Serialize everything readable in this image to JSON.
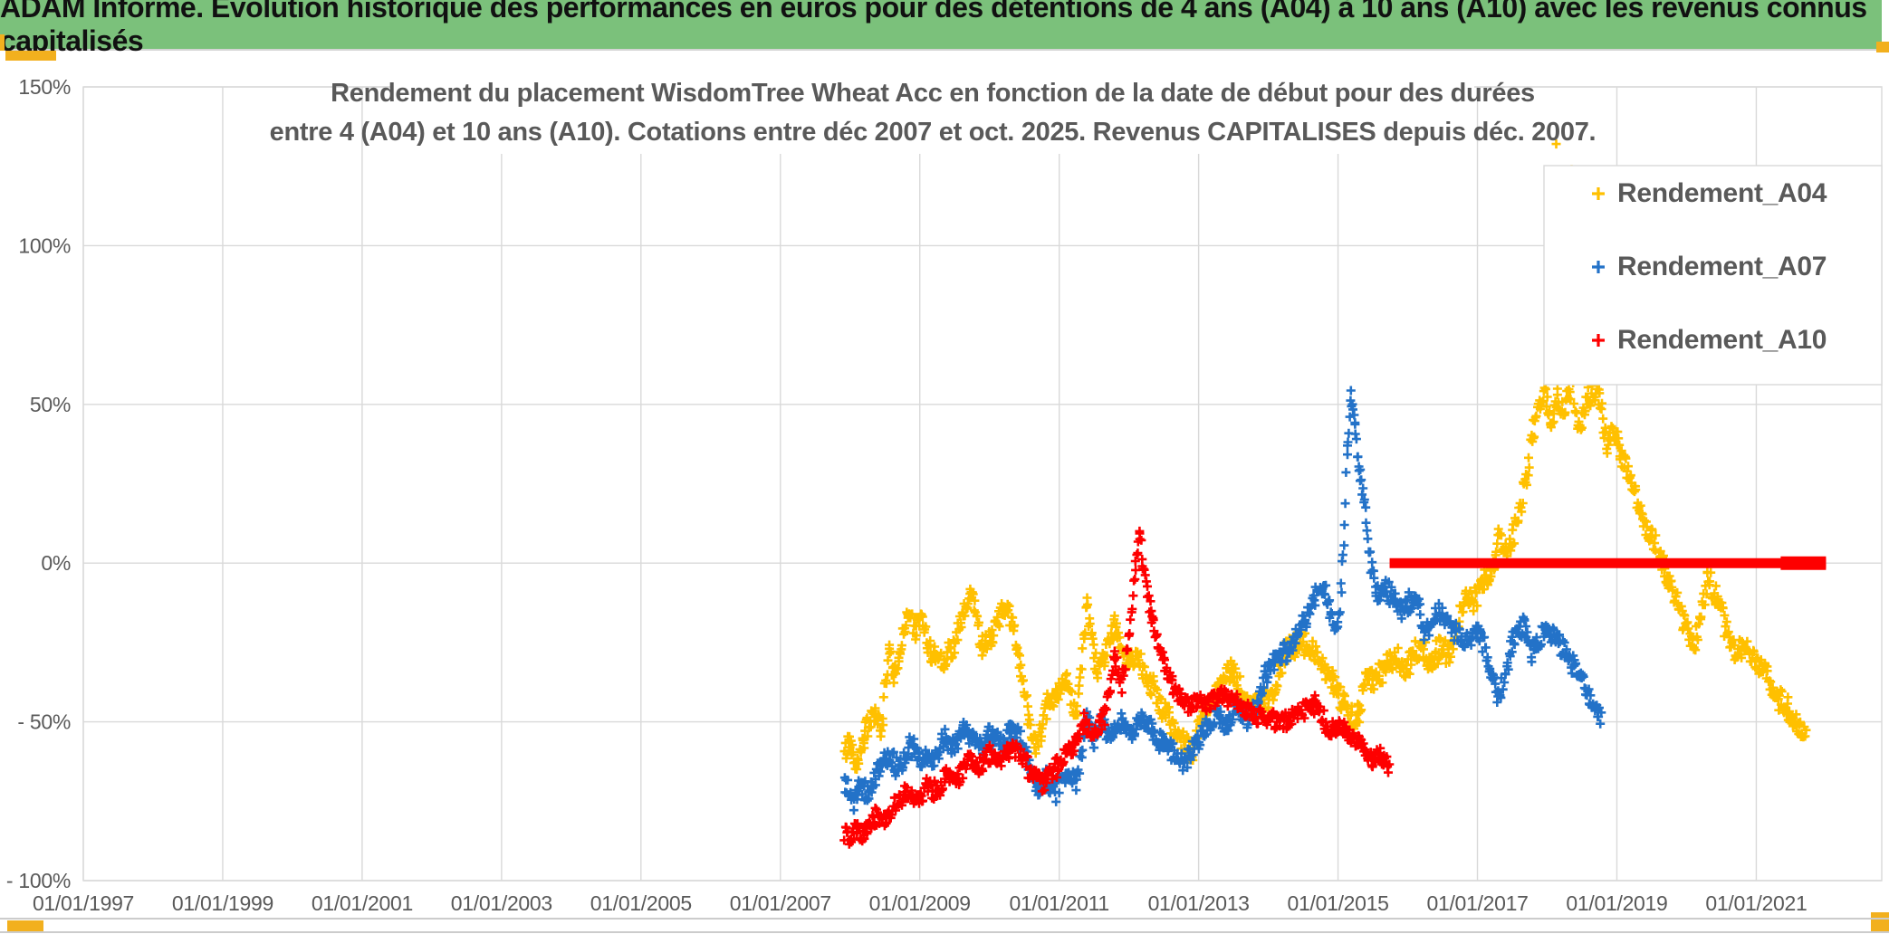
{
  "page": {
    "header": {
      "text": "ADAM Informe. Evolution historique des performances en euros pour des détentions de 4 ans (A04) à 10 ans (A10) avec les revenus connus capitalisés",
      "bg_color": "#7BC17B",
      "text_color": "#111111"
    },
    "accent_color": "#F2B01E",
    "rule_color": "#CCCCCC"
  },
  "chart_data": {
    "type": "scatter",
    "title_lines": [
      "Rendement du placement WisdomTree Wheat Acc en fonction de la date de début pour des durées",
      "entre 4 (A04) et 10 ans (A10). Cotations entre déc 2007 et oct. 2025. Revenus CAPITALISES depuis déc. 2007."
    ],
    "x_range": [
      1997,
      2022.8
    ],
    "y_range": [
      -100,
      150
    ],
    "grid": true,
    "marker": "plus",
    "point_step": 0.012,
    "style": {
      "grid_color": "#D9D9D9",
      "axis_text_color": "#595959",
      "title_color": "#595959"
    },
    "x_ticks": [
      {
        "label": "01/01/1997",
        "year": 1997
      },
      {
        "label": "01/01/1999",
        "year": 1999
      },
      {
        "label": "01/01/2001",
        "year": 2001
      },
      {
        "label": "01/01/2003",
        "year": 2003
      },
      {
        "label": "01/01/2005",
        "year": 2005
      },
      {
        "label": "01/01/2007",
        "year": 2007
      },
      {
        "label": "01/01/2009",
        "year": 2009
      },
      {
        "label": "01/01/2011",
        "year": 2011
      },
      {
        "label": "01/01/2013",
        "year": 2013
      },
      {
        "label": "01/01/2015",
        "year": 2015
      },
      {
        "label": "01/01/2017",
        "year": 2017
      },
      {
        "label": "01/01/2019",
        "year": 2019
      },
      {
        "label": "01/01/2021",
        "year": 2021
      }
    ],
    "y_ticks": [
      {
        "label": "150%",
        "value": 150
      },
      {
        "label": "100%",
        "value": 100
      },
      {
        "label": "50%",
        "value": 50
      },
      {
        "label": "0%",
        "value": 0
      },
      {
        "label": "- 50%",
        "value": -50
      },
      {
        "label": "- 100%",
        "value": -100
      }
    ],
    "legend": [
      {
        "label": "Rendement_A04",
        "color": "#FFC000"
      },
      {
        "label": "Rendement_A07",
        "color": "#2372C8"
      },
      {
        "label": "Rendement_A10",
        "color": "#FE0000"
      }
    ],
    "series": [
      {
        "name": "Rendement_A04",
        "color": "#FFC000",
        "spread": 4.2,
        "anchors": [
          [
            2007.92,
            -60
          ],
          [
            2008.0,
            -56
          ],
          [
            2008.08,
            -63
          ],
          [
            2008.2,
            -55
          ],
          [
            2008.36,
            -46
          ],
          [
            2008.45,
            -54
          ],
          [
            2008.56,
            -26
          ],
          [
            2008.62,
            -36
          ],
          [
            2008.72,
            -28
          ],
          [
            2008.83,
            -15
          ],
          [
            2008.95,
            -22
          ],
          [
            2009.0,
            -17
          ],
          [
            2009.15,
            -28
          ],
          [
            2009.35,
            -30
          ],
          [
            2009.5,
            -25
          ],
          [
            2009.62,
            -17
          ],
          [
            2009.74,
            -9
          ],
          [
            2009.9,
            -26
          ],
          [
            2010.05,
            -22
          ],
          [
            2010.2,
            -14
          ],
          [
            2010.35,
            -20
          ],
          [
            2010.45,
            -34
          ],
          [
            2010.55,
            -47
          ],
          [
            2010.65,
            -57
          ],
          [
            2010.75,
            -52
          ],
          [
            2010.85,
            -44
          ],
          [
            2010.95,
            -42
          ],
          [
            2011.1,
            -38
          ],
          [
            2011.25,
            -47
          ],
          [
            2011.4,
            -14
          ],
          [
            2011.5,
            -30
          ],
          [
            2011.55,
            -34
          ],
          [
            2011.65,
            -28
          ],
          [
            2011.8,
            -20
          ],
          [
            2011.95,
            -32
          ],
          [
            2012.1,
            -28
          ],
          [
            2012.25,
            -35
          ],
          [
            2012.4,
            -42
          ],
          [
            2012.6,
            -50
          ],
          [
            2012.75,
            -55
          ],
          [
            2012.9,
            -60
          ],
          [
            2013.05,
            -48
          ],
          [
            2013.2,
            -44
          ],
          [
            2013.47,
            -33
          ],
          [
            2013.7,
            -45
          ],
          [
            2014.0,
            -44
          ],
          [
            2014.3,
            -26
          ],
          [
            2014.55,
            -26
          ],
          [
            2014.7,
            -29
          ],
          [
            2014.93,
            -38
          ],
          [
            2015.2,
            -49
          ],
          [
            2015.3,
            -47
          ],
          [
            2015.4,
            -34
          ],
          [
            2015.5,
            -38
          ],
          [
            2015.7,
            -32
          ],
          [
            2015.84,
            -30
          ],
          [
            2015.97,
            -34
          ],
          [
            2016.1,
            -28
          ],
          [
            2016.24,
            -28
          ],
          [
            2016.33,
            -32
          ],
          [
            2016.46,
            -26
          ],
          [
            2016.6,
            -29
          ],
          [
            2016.73,
            -17
          ],
          [
            2016.82,
            -10
          ],
          [
            2016.95,
            -12
          ],
          [
            2017.08,
            -6
          ],
          [
            2017.2,
            -3
          ],
          [
            2017.3,
            8
          ],
          [
            2017.43,
            2
          ],
          [
            2017.55,
            12
          ],
          [
            2017.7,
            25
          ],
          [
            2017.8,
            42
          ],
          [
            2017.88,
            50
          ],
          [
            2017.95,
            55
          ],
          [
            2018.05,
            45
          ],
          [
            2018.15,
            52
          ],
          [
            2018.25,
            48
          ],
          [
            2018.35,
            57
          ],
          [
            2018.45,
            42
          ],
          [
            2018.55,
            50
          ],
          [
            2018.65,
            55
          ],
          [
            2018.75,
            52
          ],
          [
            2018.85,
            38
          ],
          [
            2018.95,
            42
          ],
          [
            2019.05,
            35
          ],
          [
            2019.15,
            28
          ],
          [
            2019.25,
            22
          ],
          [
            2019.35,
            15
          ],
          [
            2019.5,
            9
          ],
          [
            2019.62,
            2
          ],
          [
            2019.72,
            -4
          ],
          [
            2019.85,
            -12
          ],
          [
            2019.95,
            -18
          ],
          [
            2020.1,
            -26
          ],
          [
            2020.2,
            -18
          ],
          [
            2020.3,
            -4
          ],
          [
            2020.42,
            -10
          ],
          [
            2020.55,
            -20
          ],
          [
            2020.7,
            -28
          ],
          [
            2020.85,
            -25
          ],
          [
            2021.0,
            -32
          ],
          [
            2021.15,
            -34
          ],
          [
            2021.3,
            -42
          ],
          [
            2021.45,
            -46
          ],
          [
            2021.55,
            -50
          ],
          [
            2021.65,
            -54
          ],
          [
            2021.72,
            -53
          ]
        ],
        "outliers": [
          [
            2018.13,
            132
          ],
          [
            2018.35,
            124
          ]
        ]
      },
      {
        "name": "Rendement_A07",
        "color": "#2372C8",
        "spread": 3.6,
        "anchors": [
          [
            2007.92,
            -70
          ],
          [
            2008.05,
            -75
          ],
          [
            2008.15,
            -70
          ],
          [
            2008.25,
            -73
          ],
          [
            2008.4,
            -65
          ],
          [
            2008.55,
            -61
          ],
          [
            2008.7,
            -65
          ],
          [
            2008.85,
            -57
          ],
          [
            2009.0,
            -61
          ],
          [
            2009.2,
            -63
          ],
          [
            2009.35,
            -55
          ],
          [
            2009.5,
            -58
          ],
          [
            2009.65,
            -52
          ],
          [
            2009.78,
            -56
          ],
          [
            2009.9,
            -58
          ],
          [
            2010.0,
            -54
          ],
          [
            2010.15,
            -57
          ],
          [
            2010.3,
            -53
          ],
          [
            2010.45,
            -56
          ],
          [
            2010.6,
            -66
          ],
          [
            2010.7,
            -73
          ],
          [
            2010.8,
            -68
          ],
          [
            2010.95,
            -72
          ],
          [
            2011.1,
            -65
          ],
          [
            2011.25,
            -69
          ],
          [
            2011.4,
            -48
          ],
          [
            2011.5,
            -55
          ],
          [
            2011.6,
            -50
          ],
          [
            2011.75,
            -55
          ],
          [
            2011.9,
            -50
          ],
          [
            2012.05,
            -53
          ],
          [
            2012.2,
            -48
          ],
          [
            2012.35,
            -54
          ],
          [
            2012.5,
            -57
          ],
          [
            2012.65,
            -60
          ],
          [
            2012.8,
            -63
          ],
          [
            2012.95,
            -57
          ],
          [
            2013.1,
            -52
          ],
          [
            2013.25,
            -48
          ],
          [
            2013.4,
            -51
          ],
          [
            2013.55,
            -46
          ],
          [
            2013.7,
            -49
          ],
          [
            2013.85,
            -43
          ],
          [
            2014.0,
            -33
          ],
          [
            2014.3,
            -27
          ],
          [
            2014.55,
            -17
          ],
          [
            2014.68,
            -10
          ],
          [
            2014.8,
            -8
          ],
          [
            2014.9,
            -16
          ],
          [
            2015.0,
            -20
          ],
          [
            2015.07,
            0
          ],
          [
            2015.13,
            35
          ],
          [
            2015.18,
            51
          ],
          [
            2015.24,
            44
          ],
          [
            2015.3,
            30
          ],
          [
            2015.38,
            20
          ],
          [
            2015.45,
            3
          ],
          [
            2015.55,
            -10
          ],
          [
            2015.66,
            -7
          ],
          [
            2015.8,
            -11
          ],
          [
            2015.9,
            -15
          ],
          [
            2016.03,
            -12
          ],
          [
            2016.16,
            -12
          ],
          [
            2016.24,
            -24
          ],
          [
            2016.37,
            -17
          ],
          [
            2016.5,
            -15
          ],
          [
            2016.6,
            -20
          ],
          [
            2016.76,
            -24
          ],
          [
            2016.9,
            -25
          ],
          [
            2017.0,
            -21
          ],
          [
            2017.13,
            -28
          ],
          [
            2017.22,
            -38
          ],
          [
            2017.3,
            -42
          ],
          [
            2017.43,
            -34
          ],
          [
            2017.5,
            -24
          ],
          [
            2017.68,
            -20
          ],
          [
            2017.77,
            -28
          ],
          [
            2017.9,
            -24
          ],
          [
            2018.0,
            -21
          ],
          [
            2018.1,
            -23
          ],
          [
            2018.25,
            -28
          ],
          [
            2018.4,
            -33
          ],
          [
            2018.5,
            -37
          ],
          [
            2018.6,
            -42
          ],
          [
            2018.7,
            -46
          ],
          [
            2018.78,
            -48
          ]
        ],
        "outliers": []
      },
      {
        "name": "Rendement_A10",
        "color": "#FE0000",
        "spread": 3.2,
        "anchors": [
          [
            2007.92,
            -85
          ],
          [
            2008.0,
            -87
          ],
          [
            2008.1,
            -84
          ],
          [
            2008.2,
            -86
          ],
          [
            2008.35,
            -80
          ],
          [
            2008.5,
            -82
          ],
          [
            2008.65,
            -76
          ],
          [
            2008.8,
            -72
          ],
          [
            2008.95,
            -75
          ],
          [
            2009.1,
            -70
          ],
          [
            2009.25,
            -72
          ],
          [
            2009.4,
            -66
          ],
          [
            2009.55,
            -68
          ],
          [
            2009.7,
            -62
          ],
          [
            2009.85,
            -64
          ],
          [
            2010.0,
            -60
          ],
          [
            2010.15,
            -62
          ],
          [
            2010.3,
            -58
          ],
          [
            2010.45,
            -61
          ],
          [
            2010.6,
            -66
          ],
          [
            2010.75,
            -70
          ],
          [
            2010.9,
            -66
          ],
          [
            2011.05,
            -62
          ],
          [
            2011.2,
            -58
          ],
          [
            2011.35,
            -50
          ],
          [
            2011.5,
            -54
          ],
          [
            2011.65,
            -48
          ],
          [
            2011.8,
            -30
          ],
          [
            2011.9,
            -38
          ],
          [
            2012.0,
            -24
          ],
          [
            2012.1,
            0
          ],
          [
            2012.15,
            10
          ],
          [
            2012.2,
            -2
          ],
          [
            2012.27,
            -10
          ],
          [
            2012.33,
            -18
          ],
          [
            2012.42,
            -26
          ],
          [
            2012.52,
            -33
          ],
          [
            2012.62,
            -38
          ],
          [
            2012.72,
            -42
          ],
          [
            2012.85,
            -44
          ],
          [
            2013.1,
            -44
          ],
          [
            2013.3,
            -42
          ],
          [
            2013.47,
            -42
          ],
          [
            2013.6,
            -45
          ],
          [
            2013.77,
            -47
          ],
          [
            2014.04,
            -49
          ],
          [
            2014.3,
            -50
          ],
          [
            2014.43,
            -47
          ],
          [
            2014.7,
            -44
          ],
          [
            2014.86,
            -53
          ],
          [
            2015.07,
            -51
          ],
          [
            2015.2,
            -55
          ],
          [
            2015.37,
            -58
          ],
          [
            2015.5,
            -62
          ],
          [
            2015.6,
            -60
          ],
          [
            2015.74,
            -64
          ]
        ],
        "outliers": [],
        "flat_segment": {
          "from": 2015.74,
          "to": 2022.0,
          "value": 0,
          "bulge_from": 2021.35
        }
      }
    ]
  }
}
